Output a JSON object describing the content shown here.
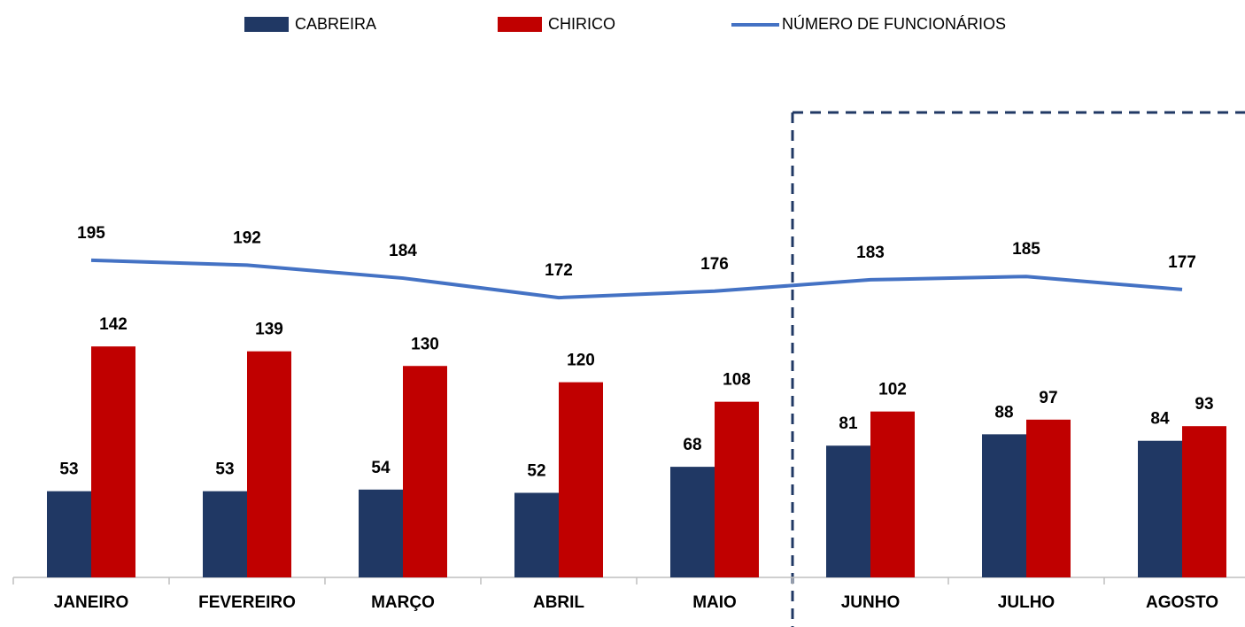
{
  "chart_data": {
    "type": "bar-line",
    "categories": [
      "JANEIRO",
      "FEVEREIRO",
      "MARÇO",
      "ABRIL",
      "MAIO",
      "JUNHO",
      "JULHO",
      "AGOSTO"
    ],
    "series": [
      {
        "name": "CABREIRA",
        "type": "bar",
        "color": "#203864",
        "values": [
          53,
          53,
          54,
          52,
          68,
          81,
          88,
          84
        ]
      },
      {
        "name": "CHIRICO",
        "type": "bar",
        "color": "#c00000",
        "values": [
          142,
          139,
          130,
          120,
          108,
          102,
          97,
          93
        ]
      },
      {
        "name": "NÚMERO DE FUNCIONÁRIOS",
        "type": "line",
        "color": "#4472c4",
        "values": [
          195,
          192,
          184,
          172,
          176,
          183,
          185,
          177
        ]
      }
    ],
    "ylim": [
      0,
      355
    ],
    "legend": "top"
  }
}
